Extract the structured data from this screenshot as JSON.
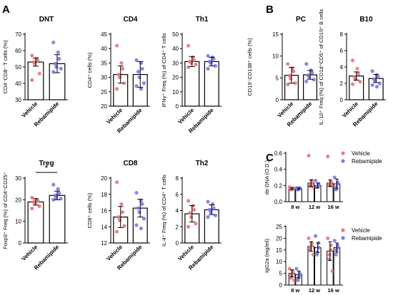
{
  "panel_letters": {
    "a": "A",
    "b": "B",
    "c": "C"
  },
  "colors": {
    "vehicle": "#e8787a",
    "rebamipide": "#7b7be6",
    "axis": "#000000",
    "bar_fill": "#ffffff"
  },
  "chart_data": [
    {
      "id": "dnt",
      "type": "bar",
      "title": "DNT",
      "ylabel": "CD4⁻CD8⁻ T cells (%)",
      "ylim": [
        30,
        70
      ],
      "yticks": [
        "30",
        "40",
        "50",
        "60",
        "70"
      ],
      "categories": [
        "Vehicle",
        "Rebamipide"
      ],
      "values": [
        53,
        52
      ],
      "errors": [
        2.5,
        5.5
      ],
      "points": [
        [
          57,
          55,
          54,
          53,
          52,
          46,
          42
        ],
        [
          65,
          59,
          55,
          52,
          50,
          49,
          47
        ]
      ]
    },
    {
      "id": "cd4",
      "type": "bar",
      "title": "CD4",
      "ylabel": "CD4⁺ cells (%)",
      "ylim": [
        20,
        45
      ],
      "yticks": [
        "20",
        "25",
        "30",
        "35",
        "40",
        "45"
      ],
      "categories": [
        "Vehicle",
        "Rebamipide"
      ],
      "values": [
        31,
        31
      ],
      "errors": [
        3,
        4.5
      ],
      "points": [
        [
          41,
          35,
          33,
          31,
          30,
          28,
          26
        ],
        [
          36,
          35,
          33,
          32,
          30,
          28,
          27,
          26
        ]
      ]
    },
    {
      "id": "th1",
      "type": "bar",
      "title": "Th1",
      "ylabel": "IFNγ⁺ Freq (%) of CD4⁺ T cells",
      "ylim": [
        0,
        50
      ],
      "yticks": [
        "0",
        "10",
        "20",
        "30",
        "40",
        "50"
      ],
      "categories": [
        "Vehicle",
        "Rebamipide"
      ],
      "values": [
        31,
        31
      ],
      "errors": [
        3.5,
        3
      ],
      "points": [
        [
          42,
          34,
          32,
          31,
          30,
          29,
          27
        ],
        [
          35,
          34,
          33,
          31,
          30,
          28,
          26
        ]
      ]
    },
    {
      "id": "pc",
      "type": "bar",
      "title": "PC",
      "ylabel": "CD19⁻CD138⁺ cells (%)",
      "ylim": [
        0,
        15
      ],
      "yticks": [
        "0",
        "5",
        "10",
        "15"
      ],
      "categories": [
        "Vehicle",
        "Rebamipide"
      ],
      "values": [
        5.6,
        5.7
      ],
      "errors": [
        1.8,
        1.0
      ],
      "points": [
        [
          8.2,
          7.2,
          6.5,
          5.5,
          4.8,
          3.8,
          3.5
        ],
        [
          8.2,
          6.8,
          6.2,
          5.6,
          5.2,
          4.6,
          4.2
        ]
      ]
    },
    {
      "id": "b10",
      "type": "bar",
      "title": "B10",
      "ylabel": "IL-10⁺ Freq (%) of CD1d⁺CD5⁺ of CD19⁺ B cells",
      "ylim": [
        0,
        8
      ],
      "yticks": [
        "0",
        "2",
        "4",
        "6",
        "8"
      ],
      "categories": [
        "Vehicle",
        "Rebamipide"
      ],
      "values": [
        2.9,
        2.6
      ],
      "errors": [
        0.5,
        0.5
      ],
      "points": [
        [
          4.8,
          3.8,
          3.2,
          2.8,
          2.5,
          2.2,
          1.9
        ],
        [
          3.5,
          3.0,
          2.8,
          2.5,
          2.3,
          2.0,
          1.8,
          1.6
        ]
      ]
    },
    {
      "id": "treg",
      "type": "bar",
      "title": "Treg",
      "ylabel": "Foxp3⁺ Freq (%) of CD4⁺CD25⁺",
      "ylim": [
        0,
        30
      ],
      "yticks": [
        "0",
        "10",
        "20",
        "30"
      ],
      "categories": [
        "Vehicle",
        "Rebamipide"
      ],
      "values": [
        19,
        22
      ],
      "errors": [
        1.5,
        2
      ],
      "significance": "*",
      "points": [
        [
          21,
          20,
          19.5,
          19,
          18.5,
          17,
          16
        ],
        [
          27,
          25,
          23,
          22,
          21,
          20.5,
          20
        ]
      ]
    },
    {
      "id": "cd8",
      "type": "bar",
      "title": "CD8",
      "ylabel": "CD8⁺ cells (%)",
      "ylim": [
        12,
        20
      ],
      "yticks": [
        "12",
        "14",
        "16",
        "18",
        "20"
      ],
      "categories": [
        "Vehicle",
        "Rebamipide"
      ],
      "values": [
        15.2,
        16.3
      ],
      "errors": [
        1.3,
        1.1
      ],
      "points": [
        [
          19.5,
          16.8,
          15.8,
          15.2,
          14.8,
          14.1,
          13.4
        ],
        [
          18.2,
          17.2,
          16.8,
          16.3,
          15.8,
          15,
          14.2,
          13.8
        ]
      ]
    },
    {
      "id": "th2",
      "type": "bar",
      "title": "Th2",
      "ylabel": "IL-4⁺ Freq (%) of CD4⁺ T cells",
      "ylim": [
        0,
        8
      ],
      "yticks": [
        "0",
        "2",
        "4",
        "6",
        "8"
      ],
      "categories": [
        "Vehicle",
        "Rebamipide"
      ],
      "values": [
        3.6,
        4.1
      ],
      "errors": [
        1,
        0.6
      ],
      "points": [
        [
          5.2,
          4.6,
          4.1,
          3.7,
          3.2,
          2.4,
          2.0
        ],
        [
          5.1,
          4.8,
          4.3,
          4.1,
          3.8,
          3.4,
          3.2
        ]
      ]
    },
    {
      "id": "dsdna",
      "type": "bar",
      "ylabel": "ds-DNA (O.D.)",
      "ylim": [
        0,
        0.6
      ],
      "yticks": [
        "0.0",
        "0.2",
        "0.4",
        "0.6"
      ],
      "categories": [
        "8 w",
        "12 w",
        "16 w"
      ],
      "series": [
        {
          "name": "Vehicle",
          "values": [
            0.16,
            0.23,
            0.23
          ],
          "errors": [
            0.01,
            0.04,
            0.04
          ],
          "points": [
            [
              0.18,
              0.17,
              0.16,
              0.16,
              0.15
            ],
            [
              0.57,
              0.26,
              0.22,
              0.2,
              0.19,
              0.18
            ],
            [
              0.56,
              0.25,
              0.23,
              0.22,
              0.2,
              0.19
            ]
          ]
        },
        {
          "name": "Rebamipide",
          "values": [
            0.16,
            0.2,
            0.22
          ],
          "errors": [
            0.01,
            0.03,
            0.06
          ],
          "points": [
            [
              0.17,
              0.17,
              0.16,
              0.16,
              0.15
            ],
            [
              0.26,
              0.22,
              0.2,
              0.19,
              0.18
            ],
            [
              0.3,
              0.24,
              0.22,
              0.18,
              0.15
            ]
          ]
        }
      ],
      "legend": [
        "Vehicle",
        "Rebamipide"
      ],
      "legend_position": "top-right"
    },
    {
      "id": "igg2a",
      "type": "bar",
      "ylabel": "IgG2a (mg/ml)",
      "ylim": [
        0,
        25
      ],
      "yticks": [
        "0",
        "5",
        "10",
        "15",
        "20",
        "25"
      ],
      "categories": [
        "8 w",
        "12 w",
        "16 w"
      ],
      "series": [
        {
          "name": "Vehicle",
          "values": [
            5,
            16.5,
            14.5
          ],
          "errors": [
            1.5,
            2,
            4
          ],
          "points": [
            [
              7,
              6,
              5,
              4,
              3,
              2
            ],
            [
              20,
              18,
              17,
              16,
              15,
              13
            ],
            [
              20,
              17,
              15,
              13,
              11,
              6
            ]
          ]
        },
        {
          "name": "Rebamipide",
          "values": [
            4.5,
            16,
            16
          ],
          "errors": [
            1.5,
            2,
            2
          ],
          "points": [
            [
              7,
              5,
              4,
              3,
              2
            ],
            [
              21,
              18,
              16,
              14,
              13
            ],
            [
              19,
              17,
              16,
              15,
              13
            ]
          ]
        }
      ],
      "legend": [
        "Vehicle",
        "Rebamipide"
      ],
      "legend_position": "top-right"
    }
  ]
}
